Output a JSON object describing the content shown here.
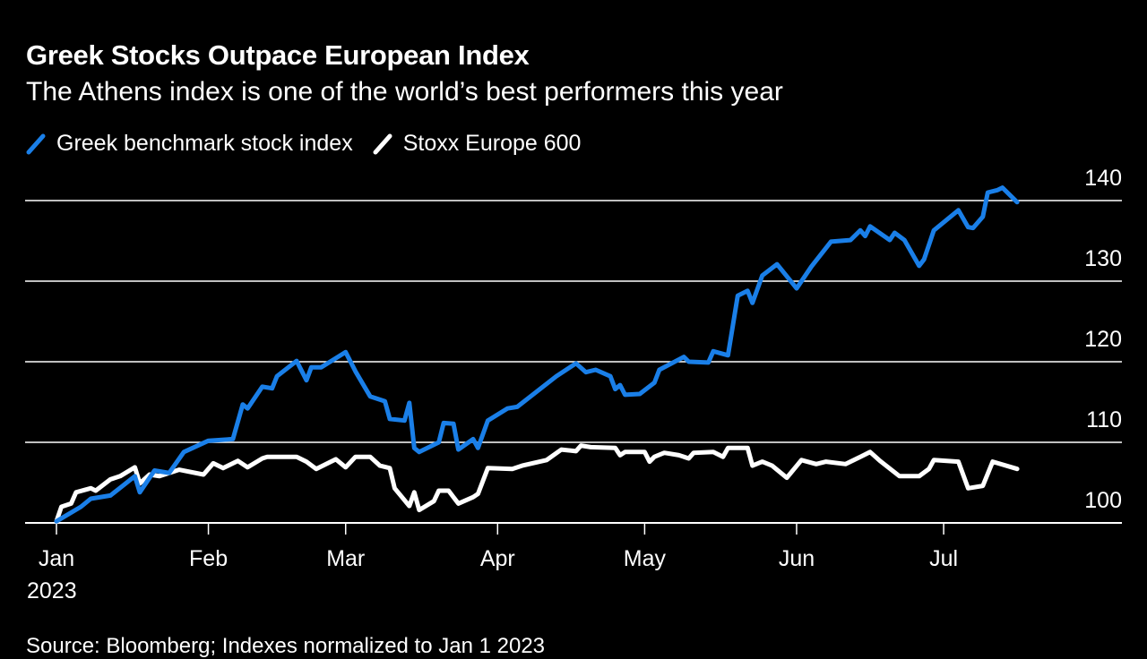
{
  "title": "Greek Stocks Outpace European Index",
  "subtitle": "The Athens index is one of the world’s best performers this year",
  "source": "Source: Bloomberg; Indexes normalized to Jan 1 2023",
  "legend": [
    {
      "label": "Greek benchmark stock index",
      "color": "#1a7fe8"
    },
    {
      "label": "Stoxx Europe 600",
      "color": "#ffffff"
    }
  ],
  "chart_data": {
    "type": "line",
    "title": "Greek Stocks Outpace European Index",
    "subtitle": "The Athens index is one of the world’s best performers this year",
    "xlabel": "",
    "ylabel": "",
    "ylim": [
      100,
      140
    ],
    "xlim": [
      "2023-01-01",
      "2023-07-31"
    ],
    "y_ticks": [
      100,
      110,
      120,
      130,
      140
    ],
    "y_axis_side": "right",
    "x_ticks": [
      {
        "date": "2023-01-01",
        "label": "Jan",
        "sublabel": "2023"
      },
      {
        "date": "2023-02-01",
        "label": "Feb"
      },
      {
        "date": "2023-03-01",
        "label": "Mar"
      },
      {
        "date": "2023-04-01",
        "label": "Apr"
      },
      {
        "date": "2023-05-01",
        "label": "May"
      },
      {
        "date": "2023-06-01",
        "label": "Jun"
      },
      {
        "date": "2023-07-01",
        "label": "Jul"
      }
    ],
    "grid": "horizontal",
    "legend_position": "top-left",
    "series": [
      {
        "name": "Greek benchmark stock index",
        "color": "#1a7fe8",
        "points": [
          [
            "2023-01-01",
            100.2
          ],
          [
            "2023-01-06",
            102.0
          ],
          [
            "2023-01-08",
            103.0
          ],
          [
            "2023-01-12",
            103.4
          ],
          [
            "2023-01-17",
            105.8
          ],
          [
            "2023-01-18",
            103.8
          ],
          [
            "2023-01-21",
            106.5
          ],
          [
            "2023-01-24",
            106.2
          ],
          [
            "2023-01-27",
            108.8
          ],
          [
            "2023-02-01",
            110.2
          ],
          [
            "2023-02-06",
            110.4
          ],
          [
            "2023-02-08",
            114.7
          ],
          [
            "2023-02-09",
            114.2
          ],
          [
            "2023-02-12",
            116.9
          ],
          [
            "2023-02-14",
            116.7
          ],
          [
            "2023-02-15",
            118.2
          ],
          [
            "2023-02-19",
            120.1
          ],
          [
            "2023-02-21",
            117.7
          ],
          [
            "2023-02-22",
            119.3
          ],
          [
            "2023-02-24",
            119.3
          ],
          [
            "2023-03-01",
            121.2
          ],
          [
            "2023-03-03",
            118.8
          ],
          [
            "2023-03-06",
            115.7
          ],
          [
            "2023-03-09",
            115.1
          ],
          [
            "2023-03-10",
            112.9
          ],
          [
            "2023-03-13",
            112.7
          ],
          [
            "2023-03-14",
            114.9
          ],
          [
            "2023-03-15",
            109.3
          ],
          [
            "2023-03-16",
            108.8
          ],
          [
            "2023-03-20",
            110.0
          ],
          [
            "2023-03-21",
            112.4
          ],
          [
            "2023-03-23",
            112.3
          ],
          [
            "2023-03-24",
            109.1
          ],
          [
            "2023-03-27",
            110.4
          ],
          [
            "2023-03-28",
            109.3
          ],
          [
            "2023-03-30",
            112.7
          ],
          [
            "2023-04-03",
            114.2
          ],
          [
            "2023-04-05",
            114.4
          ],
          [
            "2023-04-13",
            118.2
          ],
          [
            "2023-04-17",
            119.8
          ],
          [
            "2023-04-19",
            118.7
          ],
          [
            "2023-04-21",
            119.0
          ],
          [
            "2023-04-24",
            118.2
          ],
          [
            "2023-04-25",
            116.6
          ],
          [
            "2023-04-26",
            117.1
          ],
          [
            "2023-04-27",
            115.9
          ],
          [
            "2023-04-30",
            116.0
          ],
          [
            "2023-05-03",
            117.4
          ],
          [
            "2023-05-04",
            119.0
          ],
          [
            "2023-05-09",
            120.6
          ],
          [
            "2023-05-10",
            120.0
          ],
          [
            "2023-05-14",
            119.9
          ],
          [
            "2023-05-15",
            121.3
          ],
          [
            "2023-05-18",
            120.8
          ],
          [
            "2023-05-20",
            128.2
          ],
          [
            "2023-05-22",
            128.8
          ],
          [
            "2023-05-23",
            127.3
          ],
          [
            "2023-05-25",
            130.7
          ],
          [
            "2023-05-28",
            132.1
          ],
          [
            "2023-06-01",
            129.1
          ],
          [
            "2023-06-04",
            131.8
          ],
          [
            "2023-06-08",
            134.9
          ],
          [
            "2023-06-12",
            135.1
          ],
          [
            "2023-06-14",
            136.3
          ],
          [
            "2023-06-15",
            135.6
          ],
          [
            "2023-06-16",
            136.8
          ],
          [
            "2023-06-20",
            135.1
          ],
          [
            "2023-06-21",
            136.0
          ],
          [
            "2023-06-23",
            135.1
          ],
          [
            "2023-06-26",
            131.9
          ],
          [
            "2023-06-27",
            132.7
          ],
          [
            "2023-06-29",
            136.3
          ],
          [
            "2023-07-04",
            138.8
          ],
          [
            "2023-07-06",
            136.7
          ],
          [
            "2023-07-07",
            136.6
          ],
          [
            "2023-07-09",
            138.0
          ],
          [
            "2023-07-10",
            141.0
          ],
          [
            "2023-07-12",
            141.3
          ],
          [
            "2023-07-13",
            141.6
          ],
          [
            "2023-07-16",
            139.8
          ]
        ]
      },
      {
        "name": "Stoxx Europe 600",
        "color": "#ffffff",
        "points": [
          [
            "2023-01-01",
            100.2
          ],
          [
            "2023-01-02",
            102.0
          ],
          [
            "2023-01-04",
            102.4
          ],
          [
            "2023-01-05",
            103.8
          ],
          [
            "2023-01-08",
            104.3
          ],
          [
            "2023-01-09",
            104.0
          ],
          [
            "2023-01-12",
            105.4
          ],
          [
            "2023-01-14",
            105.8
          ],
          [
            "2023-01-17",
            106.9
          ],
          [
            "2023-01-18",
            104.9
          ],
          [
            "2023-01-20",
            106.0
          ],
          [
            "2023-01-22",
            105.8
          ],
          [
            "2023-01-24",
            106.2
          ],
          [
            "2023-01-26",
            106.6
          ],
          [
            "2023-01-31",
            106.0
          ],
          [
            "2023-02-02",
            107.4
          ],
          [
            "2023-02-04",
            106.8
          ],
          [
            "2023-02-07",
            107.7
          ],
          [
            "2023-02-09",
            106.9
          ],
          [
            "2023-02-12",
            108.0
          ],
          [
            "2023-02-13",
            108.2
          ],
          [
            "2023-02-19",
            108.2
          ],
          [
            "2023-02-21",
            107.6
          ],
          [
            "2023-02-23",
            106.7
          ],
          [
            "2023-02-27",
            107.9
          ],
          [
            "2023-03-01",
            106.9
          ],
          [
            "2023-03-03",
            108.2
          ],
          [
            "2023-03-06",
            108.2
          ],
          [
            "2023-03-08",
            107.1
          ],
          [
            "2023-03-10",
            106.8
          ],
          [
            "2023-03-11",
            104.3
          ],
          [
            "2023-03-14",
            102.1
          ],
          [
            "2023-03-15",
            103.8
          ],
          [
            "2023-03-16",
            101.6
          ],
          [
            "2023-03-19",
            102.7
          ],
          [
            "2023-03-20",
            104.0
          ],
          [
            "2023-03-22",
            104.0
          ],
          [
            "2023-03-24",
            102.4
          ],
          [
            "2023-03-27",
            103.2
          ],
          [
            "2023-03-28",
            103.6
          ],
          [
            "2023-03-30",
            106.8
          ],
          [
            "2023-04-04",
            106.7
          ],
          [
            "2023-04-06",
            107.1
          ],
          [
            "2023-04-11",
            107.8
          ],
          [
            "2023-04-14",
            109.1
          ],
          [
            "2023-04-17",
            108.9
          ],
          [
            "2023-04-18",
            109.6
          ],
          [
            "2023-04-20",
            109.4
          ],
          [
            "2023-04-25",
            109.3
          ],
          [
            "2023-04-26",
            108.4
          ],
          [
            "2023-04-27",
            108.8
          ],
          [
            "2023-05-01",
            108.8
          ],
          [
            "2023-05-02",
            107.6
          ],
          [
            "2023-05-03",
            108.2
          ],
          [
            "2023-05-05",
            108.7
          ],
          [
            "2023-05-08",
            108.4
          ],
          [
            "2023-05-10",
            108.0
          ],
          [
            "2023-05-11",
            108.7
          ],
          [
            "2023-05-15",
            108.8
          ],
          [
            "2023-05-17",
            108.2
          ],
          [
            "2023-05-18",
            109.3
          ],
          [
            "2023-05-22",
            109.3
          ],
          [
            "2023-05-23",
            107.1
          ],
          [
            "2023-05-25",
            107.6
          ],
          [
            "2023-05-27",
            107.1
          ],
          [
            "2023-05-30",
            105.6
          ],
          [
            "2023-06-02",
            107.8
          ],
          [
            "2023-06-05",
            107.3
          ],
          [
            "2023-06-07",
            107.6
          ],
          [
            "2023-06-11",
            107.3
          ],
          [
            "2023-06-14",
            108.2
          ],
          [
            "2023-06-16",
            108.8
          ],
          [
            "2023-06-18",
            107.7
          ],
          [
            "2023-06-22",
            105.8
          ],
          [
            "2023-06-26",
            105.8
          ],
          [
            "2023-06-28",
            106.7
          ],
          [
            "2023-06-29",
            107.8
          ],
          [
            "2023-07-04",
            107.6
          ],
          [
            "2023-07-06",
            104.3
          ],
          [
            "2023-07-09",
            104.6
          ],
          [
            "2023-07-11",
            107.6
          ],
          [
            "2023-07-16",
            106.7
          ]
        ]
      }
    ]
  }
}
